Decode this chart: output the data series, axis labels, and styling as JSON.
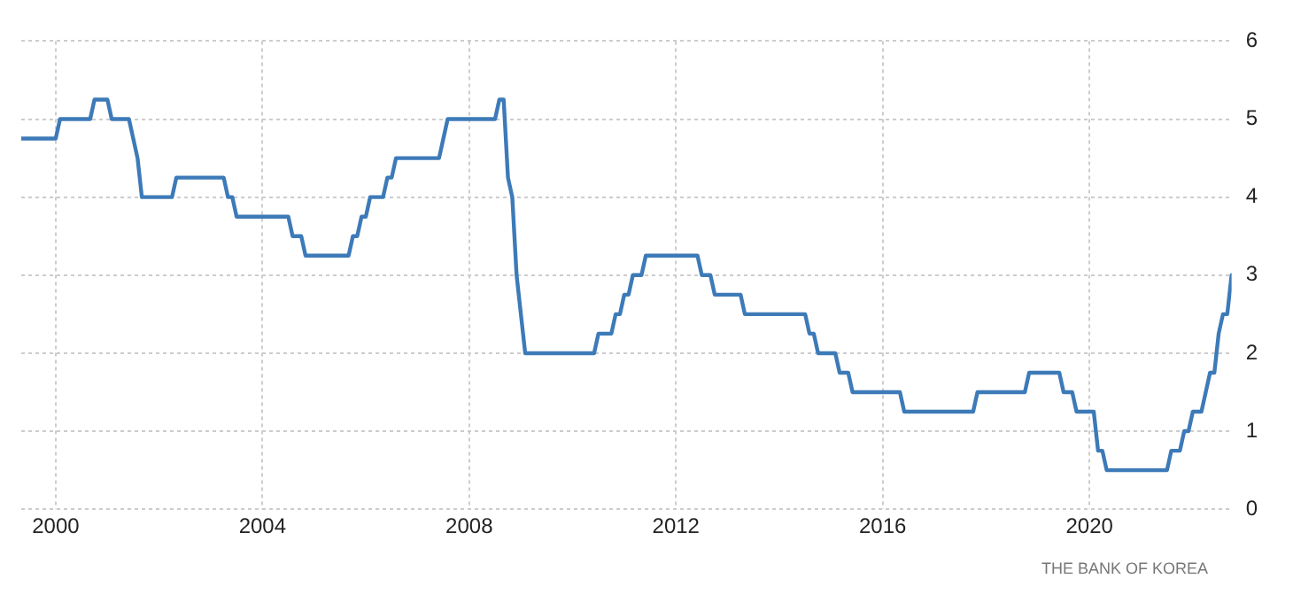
{
  "chart_data": {
    "type": "line",
    "xlim": [
      "1999-05",
      "2022-10"
    ],
    "xticks": [
      "2000",
      "2004",
      "2008",
      "2012",
      "2016",
      "2020"
    ],
    "ylim": [
      0,
      6
    ],
    "yticks": [
      0,
      1,
      2,
      3,
      4,
      5,
      6
    ],
    "grid": true,
    "legend": false,
    "marker": "none",
    "line_style": "solid",
    "annotations": [
      "THE BANK OF KOREA"
    ],
    "series": [
      {
        "color": "#3d7ab8",
        "x": [
          "1999-05",
          "2000-01",
          "2000-02",
          "2000-09",
          "2000-10",
          "2001-01",
          "2001-02",
          "2001-06",
          "2001-07",
          "2001-08",
          "2001-09",
          "2002-04",
          "2002-05",
          "2003-04",
          "2003-05",
          "2003-06",
          "2003-07",
          "2004-07",
          "2004-08",
          "2004-10",
          "2004-11",
          "2005-09",
          "2005-10",
          "2005-11",
          "2005-12",
          "2006-01",
          "2006-02",
          "2006-05",
          "2006-06",
          "2006-07",
          "2006-08",
          "2007-06",
          "2007-07",
          "2007-08",
          "2008-07",
          "2008-08",
          "2008-09",
          "2008-10",
          "2008-11",
          "2008-12",
          "2009-01",
          "2009-02",
          "2010-06",
          "2010-07",
          "2010-10",
          "2010-11",
          "2010-12",
          "2011-01",
          "2011-02",
          "2011-03",
          "2011-05",
          "2011-06",
          "2012-06",
          "2012-07",
          "2012-09",
          "2012-10",
          "2013-04",
          "2013-05",
          "2014-07",
          "2014-08",
          "2014-09",
          "2014-10",
          "2015-02",
          "2015-03",
          "2015-05",
          "2015-06",
          "2016-05",
          "2016-06",
          "2017-10",
          "2017-11",
          "2018-10",
          "2018-11",
          "2019-06",
          "2019-07",
          "2019-09",
          "2019-10",
          "2020-02",
          "2020-03",
          "2020-04",
          "2020-05",
          "2021-07",
          "2021-08",
          "2021-10",
          "2021-11",
          "2021-12",
          "2022-01",
          "2022-03",
          "2022-04",
          "2022-05",
          "2022-06",
          "2022-07",
          "2022-08",
          "2022-09",
          "2022-10"
        ],
        "values": [
          4.75,
          4.75,
          5.0,
          5.0,
          5.25,
          5.25,
          5.0,
          5.0,
          4.75,
          4.5,
          4.0,
          4.0,
          4.25,
          4.25,
          4.0,
          4.0,
          3.75,
          3.75,
          3.5,
          3.5,
          3.25,
          3.25,
          3.5,
          3.5,
          3.75,
          3.75,
          4.0,
          4.0,
          4.25,
          4.25,
          4.5,
          4.5,
          4.75,
          5.0,
          5.0,
          5.25,
          5.25,
          4.25,
          4.0,
          3.0,
          2.5,
          2.0,
          2.0,
          2.25,
          2.25,
          2.5,
          2.5,
          2.75,
          2.75,
          3.0,
          3.0,
          3.25,
          3.25,
          3.0,
          3.0,
          2.75,
          2.75,
          2.5,
          2.5,
          2.25,
          2.25,
          2.0,
          2.0,
          1.75,
          1.75,
          1.5,
          1.5,
          1.25,
          1.25,
          1.5,
          1.5,
          1.75,
          1.75,
          1.5,
          1.5,
          1.25,
          1.25,
          0.75,
          0.75,
          0.5,
          0.5,
          0.75,
          0.75,
          1.0,
          1.0,
          1.25,
          1.25,
          1.5,
          1.75,
          1.75,
          2.25,
          2.5,
          2.5,
          3.0
        ]
      }
    ]
  }
}
